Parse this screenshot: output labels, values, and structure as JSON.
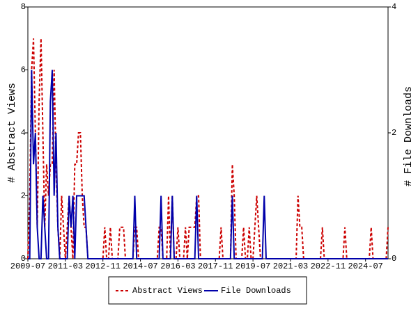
{
  "chart_data": {
    "type": "line",
    "x": [
      "2009-07",
      "2009-08",
      "2009-09",
      "2009-10",
      "2009-11",
      "2009-12",
      "2010-01",
      "2010-02",
      "2010-03",
      "2010-04",
      "2010-05",
      "2010-06",
      "2010-07",
      "2010-08",
      "2010-09",
      "2010-10",
      "2010-11",
      "2010-12",
      "2011-01",
      "2011-02",
      "2011-03",
      "2011-04",
      "2011-05",
      "2011-06",
      "2011-07",
      "2011-08",
      "2011-09",
      "2011-10",
      "2011-11",
      "2011-12",
      "2012-01",
      "2012-02",
      "2012-03",
      "2012-04",
      "2012-05",
      "2012-06",
      "2012-07",
      "2012-08",
      "2012-09",
      "2012-10",
      "2012-11",
      "2012-12",
      "2013-01",
      "2013-02",
      "2013-03",
      "2013-04",
      "2013-05",
      "2013-06",
      "2013-07",
      "2013-08",
      "2013-09",
      "2013-10",
      "2013-11",
      "2013-12",
      "2014-01",
      "2014-02",
      "2014-03",
      "2014-04",
      "2014-05",
      "2014-06",
      "2014-07",
      "2014-08",
      "2014-09",
      "2014-10",
      "2014-11",
      "2014-12",
      "2015-01",
      "2015-02",
      "2015-03",
      "2015-04",
      "2015-05",
      "2015-06",
      "2015-07",
      "2015-08",
      "2015-09",
      "2015-10",
      "2015-11",
      "2015-12",
      "2016-01",
      "2016-02",
      "2016-03",
      "2016-04",
      "2016-05",
      "2016-06",
      "2016-07",
      "2016-08",
      "2016-09",
      "2016-10",
      "2016-11",
      "2016-12",
      "2017-01",
      "2017-02",
      "2017-03",
      "2017-04",
      "2017-05",
      "2017-06",
      "2017-07",
      "2017-08",
      "2017-09",
      "2017-10",
      "2017-11",
      "2017-12",
      "2018-01",
      "2018-02",
      "2018-03",
      "2018-04",
      "2018-05",
      "2018-06",
      "2018-07",
      "2018-08",
      "2018-09",
      "2018-10",
      "2018-11",
      "2018-12",
      "2019-01",
      "2019-02",
      "2019-03",
      "2019-04",
      "2019-05",
      "2019-06",
      "2019-07",
      "2019-08",
      "2019-09",
      "2019-10",
      "2019-11",
      "2019-12",
      "2020-01",
      "2020-02",
      "2020-03",
      "2020-04",
      "2020-05",
      "2020-06",
      "2020-07",
      "2020-08",
      "2020-09",
      "2020-10",
      "2020-11",
      "2020-12",
      "2021-01",
      "2021-02",
      "2021-03",
      "2021-04",
      "2021-05",
      "2021-06",
      "2021-07",
      "2021-08",
      "2021-09",
      "2021-10",
      "2021-11",
      "2021-12",
      "2022-01",
      "2022-02",
      "2022-03",
      "2022-04",
      "2022-05",
      "2022-06",
      "2022-07",
      "2022-08",
      "2022-09",
      "2022-10",
      "2022-11",
      "2022-12",
      "2023-01",
      "2023-02",
      "2023-03",
      "2023-04",
      "2023-05",
      "2023-06",
      "2023-07",
      "2023-08",
      "2023-09",
      "2023-10",
      "2023-11",
      "2023-12",
      "2024-01",
      "2024-02",
      "2024-03",
      "2024-04",
      "2024-05",
      "2024-06",
      "2024-07",
      "2024-08",
      "2024-09",
      "2024-10",
      "2024-11",
      "2024-12",
      "2025-01",
      "2025-02",
      "2025-03",
      "2025-04",
      "2025-05",
      "2025-06",
      "2025-07"
    ],
    "xticks": [
      "2009-07",
      "2011-03",
      "2012-11",
      "2014-07",
      "2016-03",
      "2017-11",
      "2019-07",
      "2021-03",
      "2022-11",
      "2024-07"
    ],
    "ylabel": "# Abstract Views",
    "y2label": "# File Downloads",
    "ylim": [
      0,
      8
    ],
    "yticks": [
      0,
      2,
      4,
      6,
      8
    ],
    "y2lim": [
      0,
      4
    ],
    "y2ticks": [
      0,
      2,
      4
    ],
    "series": [
      {
        "name": "Abstract Views",
        "color": "#cc0000",
        "dash": true,
        "values": [
          0,
          2,
          6,
          7,
          4,
          1,
          5,
          7,
          4,
          1,
          3,
          2,
          3,
          3,
          6,
          3,
          1,
          0,
          2,
          1,
          0,
          1,
          2,
          1,
          0,
          3,
          3,
          4,
          4,
          2,
          1,
          1,
          0,
          0,
          0,
          0,
          0,
          0,
          0,
          0,
          0,
          1,
          0,
          0,
          1,
          0,
          0,
          0,
          0,
          1,
          1,
          1,
          0,
          0,
          0,
          0,
          0,
          1,
          1,
          0,
          0,
          0,
          0,
          0,
          0,
          0,
          0,
          0,
          0,
          0,
          1,
          1,
          0,
          0,
          0,
          2,
          0,
          2,
          0,
          0,
          1,
          0,
          0,
          0,
          1,
          0,
          1,
          1,
          1,
          1,
          2,
          2,
          0,
          0,
          0,
          0,
          0,
          0,
          0,
          0,
          0,
          0,
          0,
          1,
          0,
          0,
          0,
          0,
          0,
          3,
          2,
          0,
          0,
          0,
          0,
          1,
          0,
          0,
          1,
          0,
          0,
          1,
          2,
          1,
          0,
          0,
          0,
          0,
          0,
          0,
          0,
          0,
          0,
          0,
          0,
          0,
          0,
          0,
          0,
          0,
          0,
          0,
          0,
          0,
          2,
          1,
          1,
          0,
          0,
          0,
          0,
          0,
          0,
          0,
          0,
          0,
          0,
          1,
          0,
          0,
          0,
          0,
          0,
          0,
          0,
          0,
          0,
          0,
          0,
          1,
          0,
          0,
          0,
          0,
          0,
          0,
          0,
          0,
          0,
          0,
          0,
          0,
          0,
          1,
          0,
          0,
          0,
          0,
          0,
          0,
          0,
          0,
          1
        ]
      },
      {
        "name": "File Downloads",
        "color": "#0000aa",
        "dash": false,
        "axis": "y2",
        "values": [
          0,
          0,
          3,
          1.5,
          2,
          0.5,
          0,
          0,
          1,
          0.5,
          0,
          0,
          2.5,
          3,
          1,
          2,
          0.5,
          0,
          0,
          0,
          0,
          0,
          1,
          0.5,
          1,
          0,
          1,
          1,
          1,
          1,
          1,
          0.5,
          0,
          0,
          0,
          0,
          0,
          0,
          0,
          0,
          0,
          0,
          0,
          0,
          0,
          0,
          0,
          0,
          0,
          0,
          0,
          0,
          0,
          0,
          0,
          0,
          0,
          1,
          0,
          0,
          0,
          0,
          0,
          0,
          0,
          0,
          0,
          0,
          0,
          0,
          0,
          1,
          0,
          0,
          0,
          0,
          0,
          1,
          0,
          0,
          0,
          0,
          0,
          0,
          0,
          0,
          0,
          0,
          0,
          0,
          1,
          0,
          0,
          0,
          0,
          0,
          0,
          0,
          0,
          0,
          0,
          0,
          0,
          0,
          0,
          0,
          0,
          0,
          0,
          1,
          0,
          0,
          0,
          0,
          0,
          0,
          0,
          0,
          0,
          0,
          0,
          0,
          0,
          0,
          0,
          0,
          1,
          0,
          0,
          0,
          0,
          0,
          0,
          0,
          0,
          0,
          0,
          0,
          0,
          0,
          0,
          0,
          0,
          0,
          0,
          0,
          0,
          0,
          0,
          0,
          0,
          0,
          0,
          0,
          0,
          0,
          0,
          0,
          0,
          0,
          0,
          0,
          0,
          0,
          0,
          0,
          0,
          0,
          0,
          0,
          0,
          0,
          0,
          0,
          0,
          0,
          0,
          0,
          0,
          0,
          0,
          0,
          0,
          0,
          0,
          0,
          0,
          0,
          0,
          0,
          0,
          0,
          0
        ]
      }
    ]
  }
}
